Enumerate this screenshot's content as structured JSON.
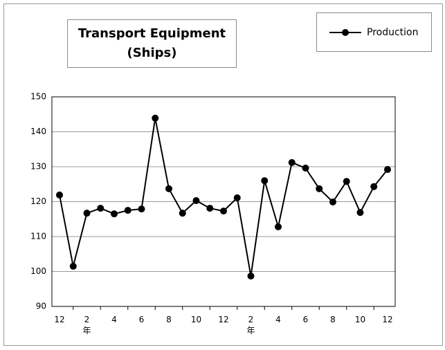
{
  "chart_data": {
    "type": "line",
    "title": "Transport Equipment\n(Ships)",
    "categories": [
      "12",
      null,
      "2\n年",
      null,
      "4",
      null,
      "6",
      null,
      "8",
      null,
      "10",
      null,
      "12",
      null,
      "2\n年",
      null,
      "4",
      null,
      "6",
      null,
      "8",
      null,
      "10",
      null,
      "12"
    ],
    "series": [
      {
        "name": "Production",
        "color": "#000000",
        "values": [
          121.9,
          101.5,
          116.7,
          118.1,
          116.5,
          117.5,
          117.9,
          143.9,
          123.7,
          116.7,
          120.3,
          118.1,
          117.3,
          121.1,
          98.7,
          126.0,
          112.8,
          131.2,
          129.6,
          123.7,
          119.9,
          125.8,
          116.9,
          124.3,
          129.2
        ]
      }
    ],
    "ylim": [
      90,
      150
    ],
    "yticks": [
      90,
      100,
      110,
      120,
      130,
      140,
      150
    ],
    "grid": true,
    "legend": "top-right"
  }
}
